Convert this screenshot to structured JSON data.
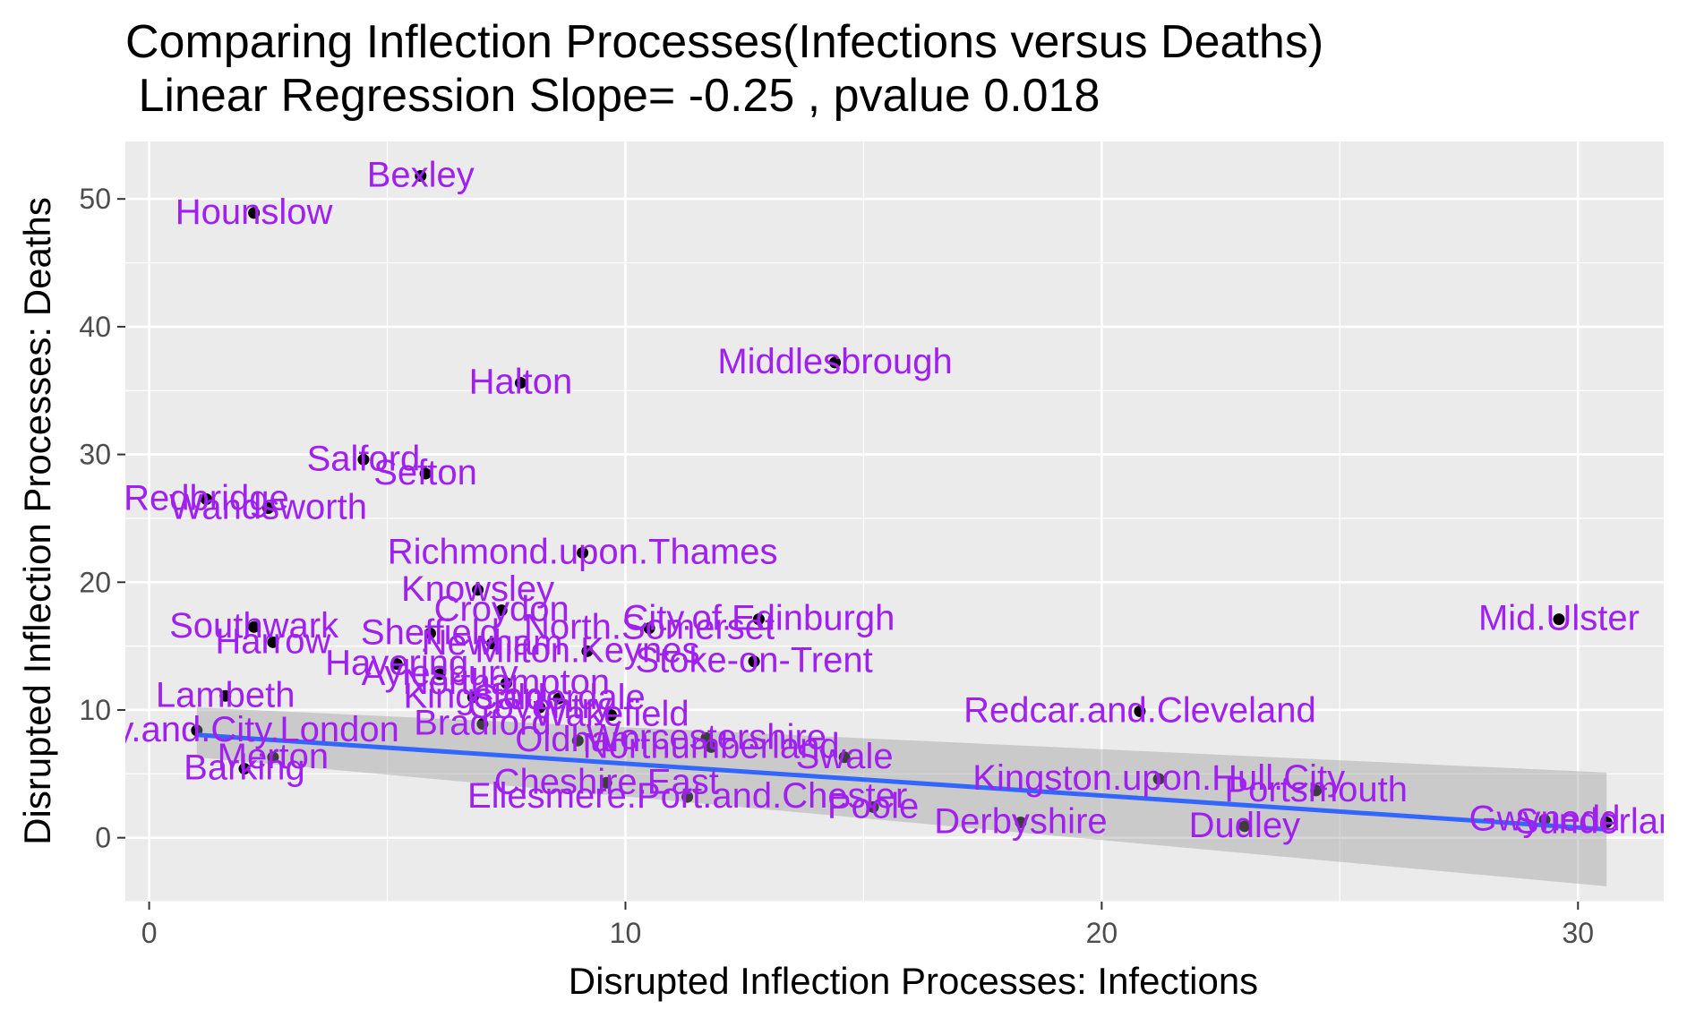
{
  "chart_data": {
    "type": "scatter",
    "title": "Comparing Inflection Processes(Infections versus Deaths)",
    "subtitle": " Linear Regression Slope= -0.25 , pvalue 0.018",
    "xlabel": "Disrupted Inflection Processes: Infections",
    "ylabel": "Disrupted Inflection Processes: Deaths",
    "xlim": [
      -0.5,
      31.8
    ],
    "ylim": [
      -5,
      54.5
    ],
    "x_ticks": [
      0,
      10,
      20,
      30
    ],
    "y_ticks": [
      0,
      10,
      20,
      30,
      40,
      50
    ],
    "grid": true,
    "colors": {
      "panel": "#EBEBEB",
      "grid": "#FFFFFF",
      "point": "#000000",
      "label": "#A020F0",
      "fit_line": "#3366FF",
      "ribbon": "#999999"
    },
    "regression": {
      "slope": -0.25,
      "intercept": 8.3,
      "x_range": [
        1.0,
        30.6
      ],
      "ci_at_start": [
        6.3,
        10.2
      ],
      "ci_at_end": [
        -3.8,
        5.1
      ]
    },
    "points": [
      {
        "x": 5.7,
        "y": 51.8,
        "label": "Bexley"
      },
      {
        "x": 2.2,
        "y": 48.9,
        "label": "Hounslow"
      },
      {
        "x": 14.4,
        "y": 37.2,
        "label": "Middlesbrough"
      },
      {
        "x": 7.8,
        "y": 35.6,
        "label": "Halton"
      },
      {
        "x": 4.5,
        "y": 29.6,
        "label": "Salford"
      },
      {
        "x": 5.8,
        "y": 28.5,
        "label": "Sefton"
      },
      {
        "x": 1.2,
        "y": 26.5,
        "label": "Redbridge"
      },
      {
        "x": 2.5,
        "y": 25.8,
        "label": "Wandsworth"
      },
      {
        "x": 9.1,
        "y": 22.3,
        "label": "Richmond.upon.Thames"
      },
      {
        "x": 6.9,
        "y": 19.4,
        "label": "Knowsley"
      },
      {
        "x": 7.4,
        "y": 17.8,
        "label": "Croydon"
      },
      {
        "x": 12.8,
        "y": 17.1,
        "label": "City.of.Edinburgh"
      },
      {
        "x": 29.6,
        "y": 17.1,
        "label": "Mid.Ulster"
      },
      {
        "x": 2.2,
        "y": 16.5,
        "label": "Southwark"
      },
      {
        "x": 10.5,
        "y": 16.4,
        "label": "North.Somerset"
      },
      {
        "x": 5.9,
        "y": 16.0,
        "label": "Sheffield"
      },
      {
        "x": 2.6,
        "y": 15.3,
        "label": "Harrow"
      },
      {
        "x": 7.2,
        "y": 15.2,
        "label": "Newham"
      },
      {
        "x": 9.2,
        "y": 14.6,
        "label": "Milton.Keynes"
      },
      {
        "x": 5.2,
        "y": 13.6,
        "label": "Havering"
      },
      {
        "x": 12.7,
        "y": 13.8,
        "label": "Stoke-on-Trent"
      },
      {
        "x": 6.1,
        "y": 12.8,
        "label": "Aylesbury"
      },
      {
        "x": 7.5,
        "y": 12.1,
        "label": "Northampton"
      },
      {
        "x": 1.6,
        "y": 11.1,
        "label": "Lambeth"
      },
      {
        "x": 6.8,
        "y": 11.0,
        "label": "Kingston"
      },
      {
        "x": 8.6,
        "y": 10.9,
        "label": "Calderdale"
      },
      {
        "x": 8.2,
        "y": 10.2,
        "label": "Coventry"
      },
      {
        "x": 9.7,
        "y": 9.6,
        "label": "Wakefield"
      },
      {
        "x": 7.0,
        "y": 8.9,
        "label": "Bradford"
      },
      {
        "x": 1.0,
        "y": 8.4,
        "label": "Hackney.and.City.London"
      },
      {
        "x": 11.7,
        "y": 7.8,
        "label": "Worcestershire"
      },
      {
        "x": 9.0,
        "y": 7.6,
        "label": "Oldham"
      },
      {
        "x": 20.8,
        "y": 9.9,
        "label": "Redcar.and.Cleveland"
      },
      {
        "x": 11.8,
        "y": 7.1,
        "label": "Northumberland"
      },
      {
        "x": 14.6,
        "y": 6.3,
        "label": "Swale"
      },
      {
        "x": 2.6,
        "y": 6.3,
        "label": "Merton"
      },
      {
        "x": 2.0,
        "y": 5.4,
        "label": "Barking"
      },
      {
        "x": 9.6,
        "y": 4.3,
        "label": "Cheshire.East"
      },
      {
        "x": 21.2,
        "y": 4.6,
        "label": "Kingston.upon.Hull.City"
      },
      {
        "x": 24.5,
        "y": 3.7,
        "label": "Portsmouth"
      },
      {
        "x": 15.2,
        "y": 2.4,
        "label": "Poole"
      },
      {
        "x": 11.3,
        "y": 3.2,
        "label": "Ellesmere.Port.and.Chester"
      },
      {
        "x": 18.3,
        "y": 1.2,
        "label": "Derbyshire"
      },
      {
        "x": 29.3,
        "y": 1.4,
        "label": "Gwynedd"
      },
      {
        "x": 30.6,
        "y": 1.2,
        "label": "Sunderland"
      },
      {
        "x": 23.0,
        "y": 0.9,
        "label": "Dudley"
      }
    ]
  }
}
